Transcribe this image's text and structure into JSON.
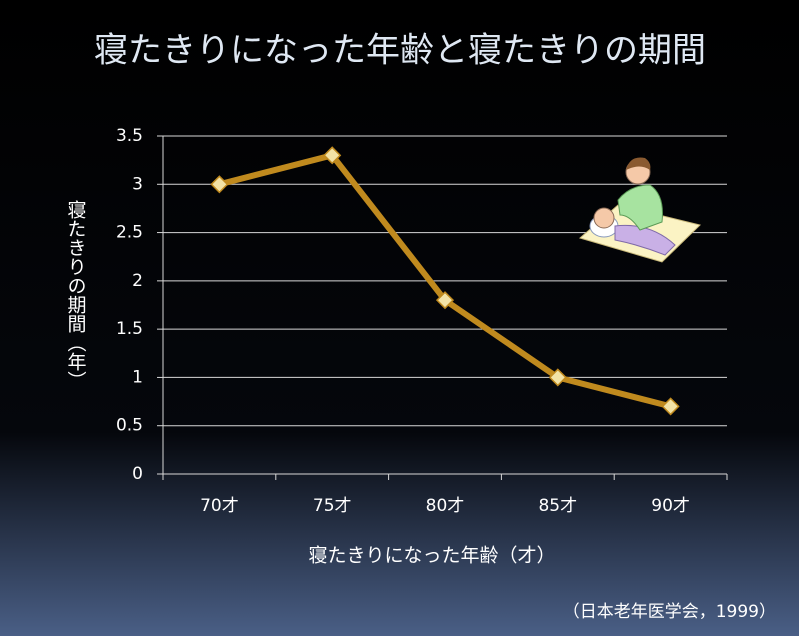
{
  "chart_data": {
    "type": "line",
    "title": "寝たきりになった年齢と寝たきりの期間",
    "y_label": "寝たきりの期間（年）",
    "x_label": "寝たきりになった年齢（才）",
    "source": "（日本老年医学会，1999）",
    "categories": [
      "70才",
      "75才",
      "80才",
      "85才",
      "90才"
    ],
    "values": [
      3,
      3.3,
      1.8,
      1,
      0.7
    ],
    "color": "#c08a1e",
    "marker_color": "#f3e3a6",
    "ylim": [
      0,
      3.5
    ],
    "yticks": [
      0,
      0.5,
      1,
      1.5,
      2,
      2.5,
      3,
      3.5
    ],
    "grid": true
  }
}
